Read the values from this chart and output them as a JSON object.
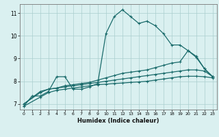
{
  "xlabel": "Humidex (Indice chaleur)",
  "bg_color": "#daf0f0",
  "line_color": "#1a6b6b",
  "grid_color": "#aacece",
  "xlim": [
    -0.5,
    23.5
  ],
  "ylim": [
    6.75,
    11.4
  ],
  "xticks": [
    0,
    1,
    2,
    3,
    4,
    5,
    6,
    7,
    8,
    9,
    10,
    11,
    12,
    13,
    14,
    15,
    16,
    17,
    18,
    19,
    20,
    21,
    22,
    23
  ],
  "yticks": [
    7,
    8,
    9,
    10,
    11
  ],
  "line1_x": [
    0,
    1,
    2,
    3,
    4,
    5,
    6,
    7,
    8,
    9,
    10,
    11,
    12,
    13,
    14,
    15,
    16,
    17,
    18,
    19,
    20,
    21,
    22,
    23
  ],
  "line1_y": [
    6.9,
    7.35,
    7.35,
    7.55,
    8.2,
    8.2,
    7.65,
    7.65,
    7.75,
    7.9,
    10.1,
    10.85,
    11.15,
    10.85,
    10.55,
    10.65,
    10.45,
    10.1,
    9.6,
    9.6,
    9.35,
    9.1,
    8.55,
    8.2
  ],
  "line2_x": [
    0,
    2,
    3,
    4,
    5,
    6,
    7,
    8,
    9,
    10,
    11,
    12,
    13,
    14,
    15,
    16,
    17,
    18,
    19,
    20,
    21,
    22,
    23
  ],
  "line2_y": [
    7.0,
    7.55,
    7.65,
    7.7,
    7.8,
    7.85,
    7.9,
    7.95,
    8.05,
    8.15,
    8.25,
    8.35,
    8.4,
    8.45,
    8.5,
    8.6,
    8.7,
    8.8,
    8.85,
    9.35,
    9.05,
    8.55,
    8.2
  ],
  "line3_x": [
    0,
    2,
    3,
    4,
    5,
    6,
    7,
    8,
    9,
    10,
    11,
    12,
    13,
    14,
    15,
    16,
    17,
    18,
    19,
    20,
    21,
    22,
    23
  ],
  "line3_y": [
    7.0,
    7.5,
    7.65,
    7.7,
    7.75,
    7.8,
    7.85,
    7.9,
    7.95,
    8.0,
    8.05,
    8.1,
    8.15,
    8.2,
    8.25,
    8.3,
    8.35,
    8.4,
    8.45,
    8.5,
    8.5,
    8.45,
    8.2
  ],
  "line4_x": [
    0,
    2,
    3,
    4,
    5,
    6,
    7,
    8,
    9,
    10,
    11,
    12,
    13,
    14,
    15,
    16,
    17,
    18,
    19,
    20,
    21,
    22,
    23
  ],
  "line4_y": [
    6.9,
    7.3,
    7.5,
    7.6,
    7.65,
    7.7,
    7.75,
    7.8,
    7.85,
    7.87,
    7.9,
    7.92,
    7.95,
    7.97,
    8.0,
    8.05,
    8.1,
    8.15,
    8.2,
    8.22,
    8.22,
    8.2,
    8.15
  ]
}
